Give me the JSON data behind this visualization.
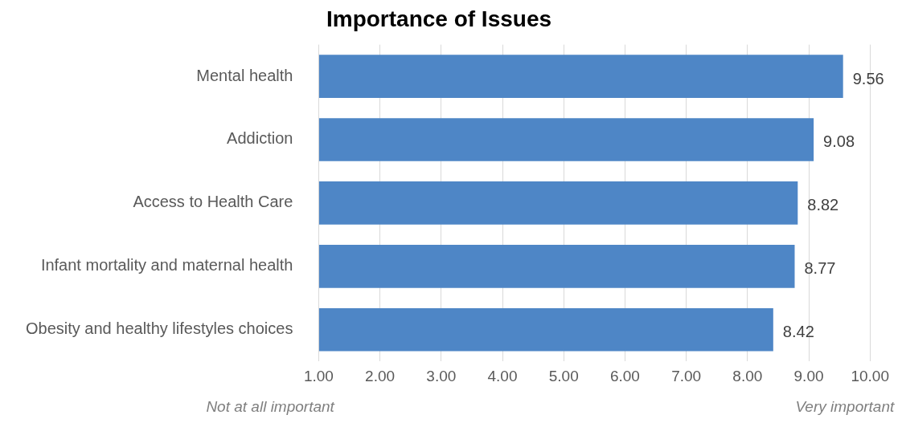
{
  "chart_data": {
    "type": "bar",
    "orientation": "horizontal",
    "title": "Importance of Issues",
    "categories": [
      "Mental health",
      "Addiction",
      "Access to Health Care",
      "Infant mortality and maternal health",
      "Obesity and healthy lifestyles choices"
    ],
    "values": [
      9.56,
      9.08,
      8.82,
      8.77,
      8.42
    ],
    "color": "#4e86c6",
    "xlim": [
      1,
      10
    ],
    "xticks": [
      {
        "value": 1,
        "label": "1.00"
      },
      {
        "value": 2,
        "label": "2.00"
      },
      {
        "value": 3,
        "label": "3.00"
      },
      {
        "value": 4,
        "label": "4.00"
      },
      {
        "value": 5,
        "label": "5.00"
      },
      {
        "value": 6,
        "label": "6.00"
      },
      {
        "value": 7,
        "label": "7.00"
      },
      {
        "value": 8,
        "label": "8.00"
      },
      {
        "value": 9,
        "label": "9.00"
      },
      {
        "value": 10,
        "label": "10.00"
      }
    ],
    "grid": "x",
    "data_labels": true,
    "legend": false,
    "annotations": [
      "Not at all important",
      "Very important"
    ]
  }
}
